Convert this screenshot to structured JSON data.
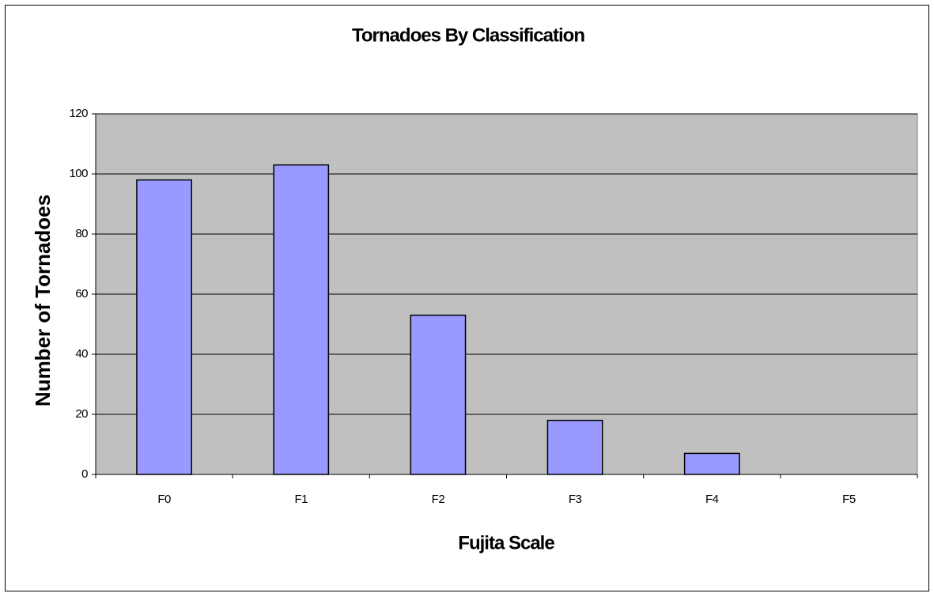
{
  "chart_data": {
    "type": "bar",
    "title": "Tornadoes By Classification",
    "x_label": "Fujita Scale",
    "y_label": "Number of Tornadoes",
    "categories": [
      "F0",
      "F1",
      "F2",
      "F3",
      "F4",
      "F5"
    ],
    "values": [
      98,
      103,
      53,
      18,
      7,
      0
    ],
    "color": "#9999ff",
    "ylim": [
      0,
      120
    ],
    "yticks": [
      0,
      20,
      40,
      60,
      80,
      100,
      120
    ],
    "grid": true
  }
}
